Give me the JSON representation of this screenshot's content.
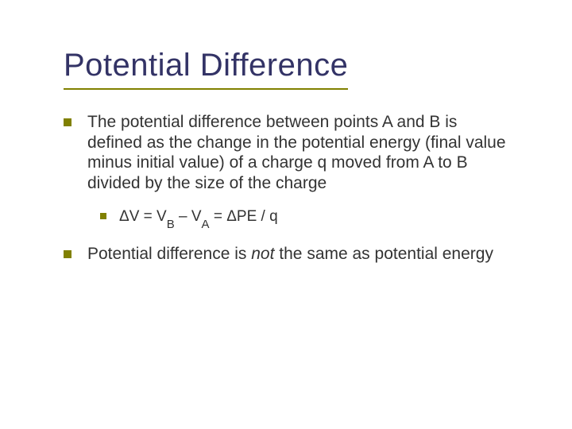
{
  "colors": {
    "title": "#333366",
    "underline": "#808000",
    "bullet_l1": "#808000",
    "bullet_l2": "#808000",
    "body_text": "#333333",
    "background": "#ffffff"
  },
  "typography": {
    "title_fontsize": 40,
    "body_fontsize": 21,
    "sub_body_fontsize": 19,
    "font_family": "Verdana"
  },
  "title": "Potential Difference",
  "bullets": [
    {
      "level": 1,
      "text": "The potential difference between points A and B is defined as the change in the potential energy (final value minus initial value) of a charge q moved from A to B divided by the size of the charge"
    },
    {
      "level": 2,
      "prefix": "ΔV = V",
      "sub1": "B",
      "mid": " – V",
      "sub2": "A",
      "suffix": " = ΔPE / q"
    },
    {
      "level": 1,
      "pre": "Potential difference is ",
      "ital": "not",
      "post": " the same as potential energy"
    }
  ]
}
